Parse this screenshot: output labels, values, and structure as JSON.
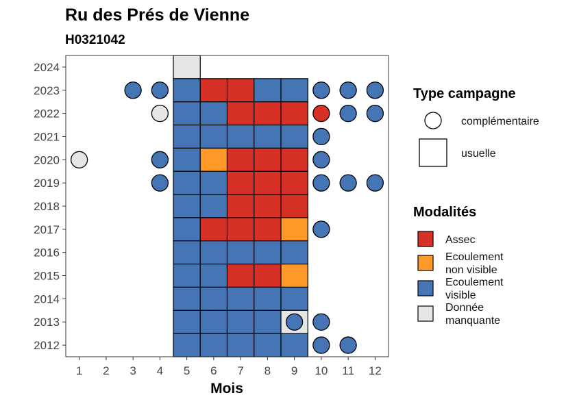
{
  "chart_data": {
    "type": "heatmap",
    "title": "Ru des Prés de Vienne",
    "subtitle": "H0321042",
    "xlabel": "Mois",
    "ylabel": "",
    "x_ticks": [
      "1",
      "2",
      "3",
      "4",
      "5",
      "6",
      "7",
      "8",
      "9",
      "10",
      "11",
      "12"
    ],
    "y_ticks": [
      "2012",
      "2013",
      "2014",
      "2015",
      "2016",
      "2017",
      "2018",
      "2019",
      "2020",
      "2021",
      "2022",
      "2023",
      "2024"
    ],
    "xlim": [
      0.5,
      12.5
    ],
    "ylim": [
      2011.5,
      2024.5
    ],
    "grid": false,
    "legend_position": "right",
    "colors": {
      "Assec": "#d73027",
      "Ecoulement non visible": "#fe9929",
      "Ecoulement visible": "#4575b4",
      "Donnée manquante": "#e6e6e6"
    },
    "legends": {
      "type": {
        "title": "Type campagne",
        "items": [
          {
            "key": "complementaire",
            "label": "complémentaire",
            "shape": "circle"
          },
          {
            "key": "usuelle",
            "label": "usuelle",
            "shape": "square"
          }
        ]
      },
      "modalites": {
        "title": "Modalités",
        "items": [
          {
            "key": "Assec",
            "label_lines": [
              "Assec"
            ]
          },
          {
            "key": "Ecoulement non visible",
            "label_lines": [
              "Ecoulement",
              "non visible"
            ]
          },
          {
            "key": "Ecoulement visible",
            "label_lines": [
              "Ecoulement",
              "visible"
            ]
          },
          {
            "key": "Donnée manquante",
            "label_lines": [
              "Donnée",
              "manquante"
            ]
          }
        ]
      }
    },
    "usuelle": [
      {
        "year": 2024,
        "values": [
          [
            5,
            "Donnée manquante"
          ]
        ]
      },
      {
        "year": 2023,
        "values": [
          [
            5,
            "Ecoulement visible"
          ],
          [
            6,
            "Assec"
          ],
          [
            7,
            "Assec"
          ],
          [
            8,
            "Ecoulement visible"
          ],
          [
            9,
            "Ecoulement visible"
          ]
        ]
      },
      {
        "year": 2022,
        "values": [
          [
            5,
            "Ecoulement visible"
          ],
          [
            6,
            "Ecoulement visible"
          ],
          [
            7,
            "Assec"
          ],
          [
            8,
            "Assec"
          ],
          [
            9,
            "Assec"
          ]
        ]
      },
      {
        "year": 2021,
        "values": [
          [
            5,
            "Ecoulement visible"
          ],
          [
            6,
            "Ecoulement visible"
          ],
          [
            7,
            "Ecoulement visible"
          ],
          [
            8,
            "Ecoulement visible"
          ],
          [
            9,
            "Ecoulement visible"
          ]
        ]
      },
      {
        "year": 2020,
        "values": [
          [
            5,
            "Ecoulement visible"
          ],
          [
            6,
            "Ecoulement non visible"
          ],
          [
            7,
            "Assec"
          ],
          [
            8,
            "Assec"
          ],
          [
            9,
            "Assec"
          ]
        ]
      },
      {
        "year": 2019,
        "values": [
          [
            5,
            "Ecoulement visible"
          ],
          [
            6,
            "Ecoulement visible"
          ],
          [
            7,
            "Assec"
          ],
          [
            8,
            "Assec"
          ],
          [
            9,
            "Assec"
          ]
        ]
      },
      {
        "year": 2018,
        "values": [
          [
            5,
            "Ecoulement visible"
          ],
          [
            6,
            "Ecoulement visible"
          ],
          [
            7,
            "Assec"
          ],
          [
            8,
            "Assec"
          ],
          [
            9,
            "Assec"
          ]
        ]
      },
      {
        "year": 2017,
        "values": [
          [
            5,
            "Ecoulement visible"
          ],
          [
            6,
            "Assec"
          ],
          [
            7,
            "Assec"
          ],
          [
            8,
            "Assec"
          ],
          [
            9,
            "Ecoulement non visible"
          ]
        ]
      },
      {
        "year": 2016,
        "values": [
          [
            5,
            "Ecoulement visible"
          ],
          [
            6,
            "Ecoulement visible"
          ],
          [
            7,
            "Ecoulement visible"
          ],
          [
            8,
            "Ecoulement visible"
          ],
          [
            9,
            "Ecoulement visible"
          ]
        ]
      },
      {
        "year": 2015,
        "values": [
          [
            5,
            "Ecoulement visible"
          ],
          [
            6,
            "Ecoulement visible"
          ],
          [
            7,
            "Assec"
          ],
          [
            8,
            "Assec"
          ],
          [
            9,
            "Ecoulement non visible"
          ]
        ]
      },
      {
        "year": 2014,
        "values": [
          [
            5,
            "Ecoulement visible"
          ],
          [
            6,
            "Ecoulement visible"
          ],
          [
            7,
            "Ecoulement visible"
          ],
          [
            8,
            "Ecoulement visible"
          ],
          [
            9,
            "Ecoulement visible"
          ]
        ]
      },
      {
        "year": 2013,
        "values": [
          [
            5,
            "Ecoulement visible"
          ],
          [
            6,
            "Ecoulement visible"
          ],
          [
            7,
            "Ecoulement visible"
          ],
          [
            8,
            "Ecoulement visible"
          ],
          [
            9,
            "Donnée manquante"
          ]
        ]
      },
      {
        "year": 2012,
        "values": [
          [
            5,
            "Ecoulement visible"
          ],
          [
            6,
            "Ecoulement visible"
          ],
          [
            7,
            "Ecoulement visible"
          ],
          [
            8,
            "Ecoulement visible"
          ],
          [
            9,
            "Ecoulement visible"
          ]
        ]
      }
    ],
    "complementaire": [
      {
        "year": 2023,
        "values": [
          [
            3,
            "Ecoulement visible"
          ],
          [
            4,
            "Ecoulement visible"
          ],
          [
            10,
            "Ecoulement visible"
          ],
          [
            11,
            "Ecoulement visible"
          ],
          [
            12,
            "Ecoulement visible"
          ]
        ]
      },
      {
        "year": 2022,
        "values": [
          [
            4,
            "Donnée manquante"
          ],
          [
            10,
            "Assec"
          ],
          [
            11,
            "Ecoulement visible"
          ],
          [
            12,
            "Ecoulement visible"
          ]
        ]
      },
      {
        "year": 2021,
        "values": [
          [
            10,
            "Ecoulement visible"
          ]
        ]
      },
      {
        "year": 2020,
        "values": [
          [
            1,
            "Donnée manquante"
          ],
          [
            4,
            "Ecoulement visible"
          ],
          [
            10,
            "Ecoulement visible"
          ]
        ]
      },
      {
        "year": 2019,
        "values": [
          [
            4,
            "Ecoulement visible"
          ],
          [
            10,
            "Ecoulement visible"
          ],
          [
            11,
            "Ecoulement visible"
          ],
          [
            12,
            "Ecoulement visible"
          ]
        ]
      },
      {
        "year": 2017,
        "values": [
          [
            10,
            "Ecoulement visible"
          ]
        ]
      },
      {
        "year": 2013,
        "values": [
          [
            9,
            "Ecoulement visible"
          ],
          [
            10,
            "Ecoulement visible"
          ]
        ]
      },
      {
        "year": 2012,
        "values": [
          [
            10,
            "Ecoulement visible"
          ],
          [
            11,
            "Ecoulement visible"
          ]
        ]
      }
    ]
  }
}
